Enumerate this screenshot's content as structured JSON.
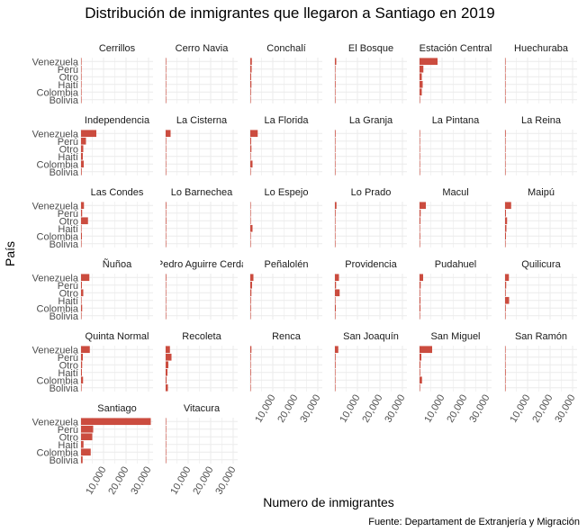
{
  "chart_data": {
    "type": "bar",
    "orientation": "horizontal",
    "title": "Distribución de inmigrantes que llegaron a Santiago en 2019",
    "xlabel": "Numero de inmigrantes",
    "ylabel": "País",
    "caption": "Fuente: Departament de Extranjería y Migración",
    "categories": [
      "Venezuela",
      "Perú",
      "Otro",
      "Haití",
      "Colombia",
      "Bolivia"
    ],
    "xlim": [
      0,
      32000
    ],
    "xticks": [
      10000,
      20000,
      30000
    ],
    "xtick_labels": [
      "10,000",
      "20,000",
      "30,000"
    ],
    "bar_color": "#CB4C3F",
    "grid": true,
    "facets": [
      {
        "name": "Cerrillos",
        "values": [
          200,
          150,
          100,
          150,
          120,
          30
        ]
      },
      {
        "name": "Cerro Navia",
        "values": [
          250,
          100,
          150,
          100,
          80,
          20
        ]
      },
      {
        "name": "Conchalí",
        "values": [
          700,
          600,
          400,
          500,
          300,
          100
        ]
      },
      {
        "name": "El Bosque",
        "values": [
          600,
          200,
          200,
          300,
          100,
          50
        ]
      },
      {
        "name": "Estación Central",
        "values": [
          8000,
          1700,
          1000,
          1400,
          1000,
          200
        ]
      },
      {
        "name": "Huechuraba",
        "values": [
          150,
          100,
          100,
          150,
          80,
          20
        ]
      },
      {
        "name": "Independencia",
        "values": [
          6800,
          2200,
          1000,
          800,
          1200,
          300
        ]
      },
      {
        "name": "La Cisterna",
        "values": [
          2200,
          200,
          200,
          100,
          100,
          50
        ]
      },
      {
        "name": "La Florida",
        "values": [
          3300,
          400,
          500,
          200,
          1000,
          100
        ]
      },
      {
        "name": "La Granja",
        "values": [
          300,
          100,
          100,
          150,
          80,
          20
        ]
      },
      {
        "name": "La Pintana",
        "values": [
          150,
          50,
          50,
          100,
          50,
          20
        ]
      },
      {
        "name": "La Reina",
        "values": [
          300,
          50,
          100,
          20,
          80,
          10
        ]
      },
      {
        "name": "Las Condes",
        "values": [
          1300,
          500,
          3100,
          200,
          400,
          100
        ]
      },
      {
        "name": "Lo Barnechea",
        "values": [
          300,
          100,
          300,
          100,
          100,
          20
        ]
      },
      {
        "name": "Lo Espejo",
        "values": [
          150,
          100,
          100,
          1000,
          50,
          20
        ]
      },
      {
        "name": "Lo Prado",
        "values": [
          700,
          300,
          200,
          200,
          100,
          30
        ]
      },
      {
        "name": "Macul",
        "values": [
          2800,
          500,
          400,
          200,
          300,
          100
        ]
      },
      {
        "name": "Maipú",
        "values": [
          2700,
          400,
          900,
          600,
          400,
          100
        ]
      },
      {
        "name": "Ñuñoa",
        "values": [
          3700,
          400,
          1000,
          100,
          500,
          100
        ]
      },
      {
        "name": "Pedro Aguirre Cerda",
        "values": [
          300,
          200,
          100,
          200,
          50,
          20
        ]
      },
      {
        "name": "Peñalolén",
        "values": [
          1400,
          800,
          500,
          300,
          300,
          100
        ]
      },
      {
        "name": "Providencia",
        "values": [
          1800,
          500,
          2100,
          100,
          400,
          100
        ]
      },
      {
        "name": "Pudahuel",
        "values": [
          1600,
          500,
          300,
          400,
          400,
          100
        ]
      },
      {
        "name": "Quilicura",
        "values": [
          1700,
          500,
          300,
          1800,
          300,
          100
        ]
      },
      {
        "name": "Quinta Normal",
        "values": [
          3900,
          800,
          500,
          400,
          900,
          100
        ]
      },
      {
        "name": "Recoleta",
        "values": [
          1900,
          2600,
          1200,
          800,
          400,
          1000
        ]
      },
      {
        "name": "Renca",
        "values": [
          500,
          300,
          200,
          300,
          100,
          50
        ]
      },
      {
        "name": "San Joaquín",
        "values": [
          1500,
          300,
          300,
          200,
          200,
          50
        ]
      },
      {
        "name": "San Miguel",
        "values": [
          5600,
          800,
          400,
          300,
          1100,
          100
        ]
      },
      {
        "name": "San Ramón",
        "values": [
          200,
          50,
          50,
          300,
          50,
          10
        ]
      },
      {
        "name": "Santiago",
        "values": [
          31000,
          5400,
          5000,
          1100,
          4300,
          700
        ]
      },
      {
        "name": "Vitacura",
        "values": [
          150,
          50,
          100,
          20,
          50,
          10
        ]
      }
    ]
  }
}
